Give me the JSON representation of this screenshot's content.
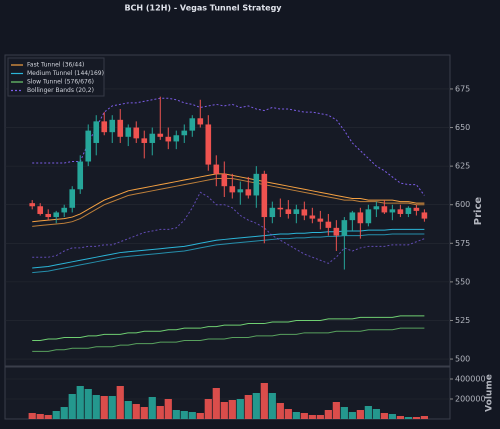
{
  "chart_data": {
    "type": "candlestick",
    "title": "BCH (12H) - Vegas Tunnel Strategy",
    "ylabel": "Price",
    "x": [
      0,
      1,
      2,
      3,
      4,
      5,
      6,
      7,
      8,
      9,
      10,
      11,
      12,
      13,
      14,
      15,
      16,
      17,
      18,
      19,
      20,
      21,
      22,
      23,
      24,
      25,
      26,
      27,
      28,
      29,
      30,
      31,
      32,
      33,
      34,
      35,
      36,
      37,
      38,
      39,
      40,
      41,
      42,
      43,
      44,
      45,
      46,
      47,
      48,
      49
    ],
    "xlim": [
      -3.4,
      52.2
    ],
    "open": [
      601,
      599,
      594,
      592,
      595,
      598,
      610,
      628,
      640,
      654,
      647,
      655,
      644,
      650,
      643,
      640,
      646,
      644,
      641,
      645,
      648,
      656,
      652,
      626,
      620,
      612,
      608,
      610,
      606,
      620,
      592,
      598,
      597,
      594,
      597,
      593,
      591,
      589,
      585,
      580,
      590,
      595,
      588,
      597,
      599,
      595,
      597,
      594,
      598,
      595
    ],
    "high": [
      603,
      601,
      597,
      596,
      600,
      612,
      632,
      652,
      658,
      660,
      658,
      662,
      652,
      654,
      648,
      650,
      670,
      650,
      648,
      652,
      658,
      668,
      658,
      632,
      628,
      620,
      615,
      618,
      625,
      622,
      602,
      604,
      603,
      600,
      602,
      598,
      596,
      594,
      590,
      592,
      596,
      598,
      600,
      602,
      603,
      600,
      600,
      599,
      600,
      597
    ],
    "low": [
      597,
      593,
      590,
      588,
      592,
      595,
      607,
      625,
      632,
      645,
      640,
      640,
      638,
      640,
      630,
      632,
      642,
      636,
      636,
      640,
      644,
      650,
      622,
      612,
      605,
      604,
      600,
      604,
      598,
      575,
      588,
      592,
      591,
      588,
      590,
      588,
      584,
      580,
      570,
      558,
      583,
      578,
      586,
      592,
      594,
      590,
      592,
      592,
      593,
      589
    ],
    "close": [
      599,
      594,
      592,
      595,
      598,
      610,
      628,
      648,
      654,
      647,
      655,
      644,
      650,
      643,
      640,
      646,
      644,
      641,
      645,
      648,
      656,
      652,
      626,
      620,
      612,
      608,
      610,
      606,
      620,
      592,
      598,
      597,
      594,
      597,
      593,
      591,
      589,
      585,
      580,
      590,
      595,
      588,
      597,
      599,
      595,
      597,
      594,
      598,
      596,
      591
    ],
    "up_color": "#26a69a",
    "down_color": "#ef5350",
    "ylim": [
      495.5,
      697
    ],
    "yticks": [
      500,
      525,
      550,
      575,
      600,
      625,
      650,
      675
    ],
    "grid": true,
    "legend": "upper left",
    "series": [
      {
        "name": "Fast Tunnel (36/44)",
        "color": "#f5a142",
        "values": [
          [
            589,
            589.5,
            590,
            590.5,
            591,
            592,
            594,
            597,
            600,
            603,
            605,
            607,
            609,
            610,
            611,
            612,
            613,
            614,
            615,
            616,
            617,
            618,
            619,
            620,
            620,
            619,
            618,
            617,
            616,
            615,
            614,
            613,
            612,
            611,
            610,
            609,
            608,
            607,
            606,
            605,
            604,
            604,
            603,
            603,
            603,
            603,
            602,
            602,
            601,
            601
          ],
          [
            586,
            586.5,
            587,
            587.5,
            588,
            589,
            591,
            594,
            597,
            600,
            602,
            604,
            606,
            607,
            608,
            609,
            610,
            611,
            612,
            613,
            614,
            615,
            616,
            617,
            617,
            617,
            616,
            615,
            614,
            613,
            612,
            611,
            610,
            609,
            608,
            607,
            606,
            605,
            604,
            603,
            603,
            602,
            602,
            602,
            601,
            601,
            601,
            601,
            600,
            600
          ]
        ]
      },
      {
        "name": "Medium Tunnel (144/169)",
        "color": "#2bb5d8",
        "values": [
          [
            559,
            559.5,
            560,
            561,
            562,
            563,
            564,
            565,
            566,
            567,
            568,
            569,
            569.5,
            570,
            570.5,
            571,
            571.5,
            572,
            572.5,
            573,
            574,
            575,
            576,
            577,
            577.5,
            578,
            578.5,
            579,
            579.5,
            580,
            580.5,
            581,
            581,
            581.5,
            581.5,
            582,
            582,
            582.5,
            582.5,
            583,
            583,
            583,
            583.5,
            583.5,
            583.5,
            584,
            584,
            584,
            584,
            584
          ],
          [
            556,
            556.5,
            557,
            558,
            559,
            560,
            561,
            562,
            563,
            564,
            565,
            566,
            566.5,
            567,
            567.5,
            568,
            568.5,
            569,
            569.5,
            570,
            571,
            572,
            573,
            574,
            574.5,
            575,
            575.5,
            576,
            576.5,
            577,
            577.5,
            578,
            578,
            578.5,
            578.5,
            579,
            579,
            579.5,
            579.5,
            580,
            580,
            580,
            580.5,
            580.5,
            580.5,
            581,
            581,
            581,
            581,
            581
          ]
        ]
      },
      {
        "name": "Slow Tunnel (576/676)",
        "color": "#6fcf72",
        "values": [
          [
            512,
            512,
            513,
            513,
            514,
            514,
            514,
            515,
            515,
            516,
            516,
            516,
            517,
            517,
            518,
            518,
            518,
            519,
            519,
            520,
            520,
            520,
            521,
            521,
            522,
            522,
            522,
            523,
            523,
            523,
            524,
            524,
            524,
            525,
            525,
            525,
            525,
            526,
            526,
            526,
            526,
            527,
            527,
            527,
            527,
            527,
            528,
            528,
            528,
            528
          ],
          [
            505,
            505,
            505,
            506,
            506,
            507,
            507,
            507,
            508,
            508,
            508,
            509,
            509,
            510,
            510,
            510,
            511,
            511,
            511,
            512,
            512,
            512,
            513,
            513,
            513,
            514,
            514,
            514,
            515,
            515,
            515,
            516,
            516,
            516,
            517,
            517,
            517,
            517,
            518,
            518,
            518,
            518,
            519,
            519,
            519,
            519,
            520,
            520,
            520,
            520
          ]
        ]
      },
      {
        "name": "Bollinger Bands (20,2)",
        "color": "#7b5ce6",
        "style": "dashed",
        "values": [
          [
            627,
            627,
            627,
            627,
            627,
            628,
            628,
            640,
            650,
            660,
            664,
            665,
            666,
            666,
            667,
            668,
            669,
            669,
            668,
            666,
            665,
            663,
            664,
            665,
            664,
            665,
            663,
            664,
            662,
            661,
            663,
            662,
            662,
            661,
            660,
            660,
            659,
            658,
            655,
            648,
            640,
            635,
            630,
            625,
            622,
            618,
            614,
            613,
            613,
            606
          ],
          [
            566,
            566,
            566,
            567,
            570,
            572,
            572,
            573,
            573,
            574,
            574,
            576,
            578,
            580,
            582,
            583,
            584,
            584,
            585,
            590,
            598,
            608,
            605,
            600,
            600,
            598,
            593,
            590,
            588,
            585,
            580,
            577,
            574,
            571,
            568,
            566,
            564,
            562,
            566,
            572,
            570,
            572,
            573,
            573,
            573,
            574,
            574,
            574,
            576,
            578
          ]
        ]
      }
    ],
    "volume": {
      "ylabel": "Volume",
      "ylim": [
        0,
        520000
      ],
      "yticks": [
        200000,
        400000
      ],
      "values": [
        60000,
        50000,
        40000,
        80000,
        120000,
        250000,
        330000,
        300000,
        240000,
        230000,
        230000,
        330000,
        180000,
        150000,
        120000,
        220000,
        130000,
        200000,
        90000,
        80000,
        70000,
        60000,
        200000,
        310000,
        170000,
        190000,
        200000,
        240000,
        260000,
        360000,
        260000,
        160000,
        100000,
        70000,
        60000,
        40000,
        40000,
        90000,
        170000,
        120000,
        70000,
        90000,
        130000,
        100000,
        60000,
        50000,
        30000,
        20000,
        20000,
        30000
      ]
    }
  }
}
